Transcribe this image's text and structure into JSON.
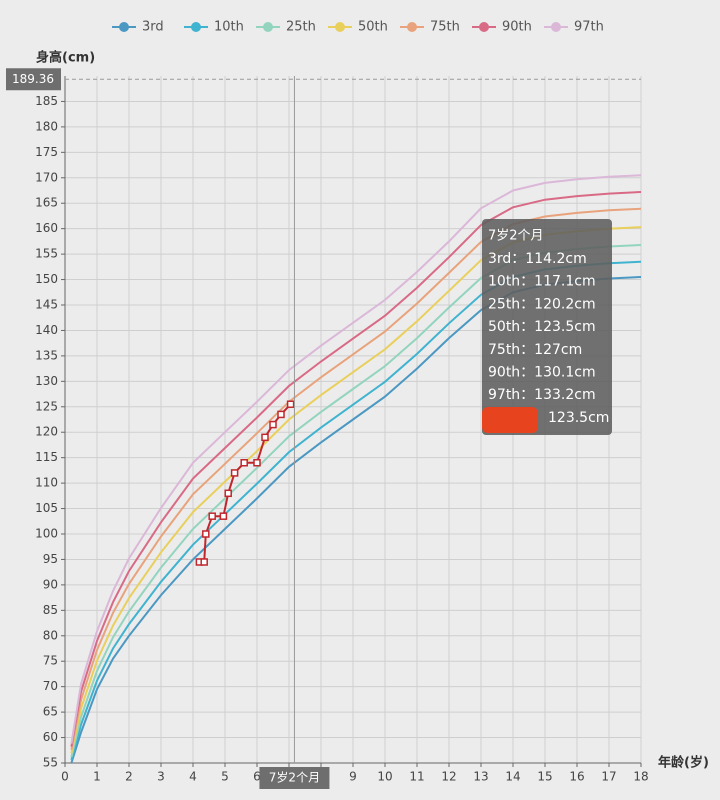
{
  "chart_data": {
    "type": "line",
    "y_label": "身高(cm)",
    "x_label": "年龄(岁)",
    "xlim": [
      0,
      18
    ],
    "xticks": [
      0,
      1,
      2,
      3,
      4,
      5,
      6,
      7,
      8,
      9,
      10,
      11,
      12,
      13,
      14,
      15,
      16,
      17,
      18
    ],
    "ylim": [
      55,
      190
    ],
    "yticks": [
      55,
      60,
      65,
      70,
      75,
      80,
      85,
      90,
      95,
      100,
      105,
      110,
      115,
      120,
      125,
      130,
      135,
      140,
      145,
      150,
      155,
      160,
      165,
      170,
      175,
      180,
      185
    ],
    "grid": true,
    "legend": "top",
    "x": [
      0.2,
      0.5,
      1,
      1.5,
      2,
      3,
      4,
      5,
      6,
      7,
      8,
      9,
      10,
      11,
      12,
      13,
      14,
      15,
      16,
      17,
      18
    ],
    "series": [
      {
        "name": "3rd",
        "color": "#4b98c2",
        "values": [
          55,
          61,
          69.5,
          75.5,
          80,
          88,
          95,
          101,
          107,
          113.2,
          118,
          122.5,
          127,
          132.5,
          138.5,
          144,
          147.5,
          149,
          149.7,
          150.2,
          150.5
        ]
      },
      {
        "name": "10th",
        "color": "#3fb3cf",
        "values": [
          55.6,
          62.5,
          71.2,
          77.5,
          82.3,
          90.6,
          97.9,
          103.9,
          109.9,
          116.1,
          120.9,
          125.4,
          129.9,
          135.4,
          141.4,
          147,
          150.5,
          152,
          152.7,
          153.2,
          153.5
        ]
      },
      {
        "name": "25th",
        "color": "#93d4bf",
        "values": [
          56.2,
          64,
          73.1,
          79.7,
          84.8,
          93.4,
          101,
          107,
          113,
          119.2,
          124,
          128.5,
          133,
          138.5,
          144.5,
          150.3,
          153.8,
          155.3,
          156,
          156.5,
          156.8
        ]
      },
      {
        "name": "50th",
        "color": "#e9cf5c",
        "values": [
          56.9,
          65.7,
          75.1,
          82,
          87.4,
          96.4,
          104.3,
          110.3,
          116.3,
          122.5,
          127.3,
          131.8,
          136.3,
          141.8,
          147.8,
          153.8,
          157.3,
          158.8,
          159.5,
          160,
          160.3
        ]
      },
      {
        "name": "75th",
        "color": "#e8a37c",
        "values": [
          57.6,
          67.4,
          77.2,
          84.5,
          90.2,
          99.5,
          107.8,
          113.8,
          119.8,
          126,
          130.8,
          135.3,
          139.8,
          145.3,
          151.3,
          157.4,
          160.9,
          162.4,
          163.1,
          163.6,
          163.9
        ]
      },
      {
        "name": "90th",
        "color": "#d96a86",
        "values": [
          58.2,
          69,
          79,
          86.6,
          92.7,
          102.3,
          110.9,
          116.9,
          122.9,
          129.1,
          133.9,
          138.4,
          142.9,
          148.4,
          154.4,
          160.7,
          164.2,
          165.7,
          166.4,
          166.9,
          167.2
        ]
      },
      {
        "name": "97th",
        "color": "#dbb7d8",
        "values": [
          58.8,
          70.5,
          80.9,
          88.8,
          95.2,
          105.1,
          114,
          120,
          126,
          132.2,
          137,
          141.5,
          146,
          151.5,
          157.5,
          164,
          167.5,
          169,
          169.7,
          170.2,
          170.5
        ]
      }
    ],
    "measured": {
      "color": "#c0272d",
      "marker": "square",
      "x": [
        4.2,
        4.35,
        4.4,
        4.6,
        4.95,
        5.1,
        5.3,
        5.6,
        6,
        6.25,
        6.5,
        6.75,
        7.05
      ],
      "values": [
        94.5,
        94.5,
        100,
        103.5,
        103.5,
        108,
        112,
        114,
        114,
        119,
        121.5,
        123.5,
        125.5
      ]
    },
    "pointer": {
      "x": 7.17,
      "x_label": "7岁2个月",
      "y": 189.36
    },
    "tooltip": {
      "title": "7岁2个月",
      "rows": [
        "3rd：114.2cm",
        "10th：117.1cm",
        "25th：120.2cm",
        "50th：123.5cm",
        "75th：127cm",
        "90th：130.1cm",
        "97th：133.2cm"
      ],
      "measured": "123.5cm"
    }
  }
}
